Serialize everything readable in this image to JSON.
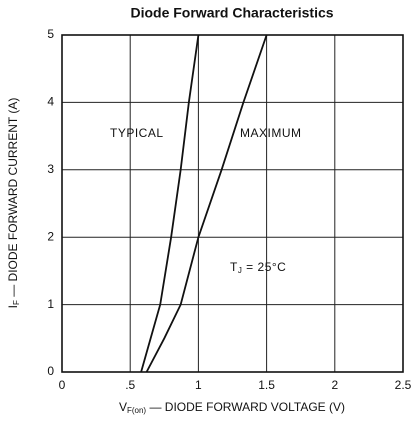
{
  "chart_data": {
    "type": "line",
    "title": "Diode Forward Characteristics",
    "x_label": {
      "main": "V",
      "sub": "F(on)",
      "rest": " — DIODE FORWARD VOLTAGE (V)"
    },
    "y_label": {
      "main": "I",
      "sub": "F",
      "rest": " — DIODE FORWARD CURRENT (A)"
    },
    "annotation": {
      "main": "T",
      "sub": "J",
      "rest": " = 25°C"
    },
    "series": [
      {
        "name": "TYPICAL",
        "color": "#111111",
        "x": [
          0.58,
          0.65,
          0.72,
          0.8,
          0.87,
          0.93,
          1.0
        ],
        "values": [
          0,
          0.5,
          1,
          2,
          3,
          4,
          5
        ]
      },
      {
        "name": "MAXIMUM",
        "color": "#111111",
        "x": [
          0.62,
          0.75,
          0.87,
          1.0,
          1.17,
          1.33,
          1.5
        ],
        "values": [
          0,
          0.5,
          1,
          2,
          3,
          4,
          5
        ]
      }
    ],
    "xlim": [
      0,
      2.5
    ],
    "xticks": [
      0,
      {
        "value": 0.5,
        "label": ".5"
      },
      1,
      1.5,
      2,
      2.5
    ],
    "ylim": [
      0,
      5
    ],
    "yticks": [
      0,
      1,
      2,
      3,
      4,
      5
    ],
    "grid": true
  }
}
